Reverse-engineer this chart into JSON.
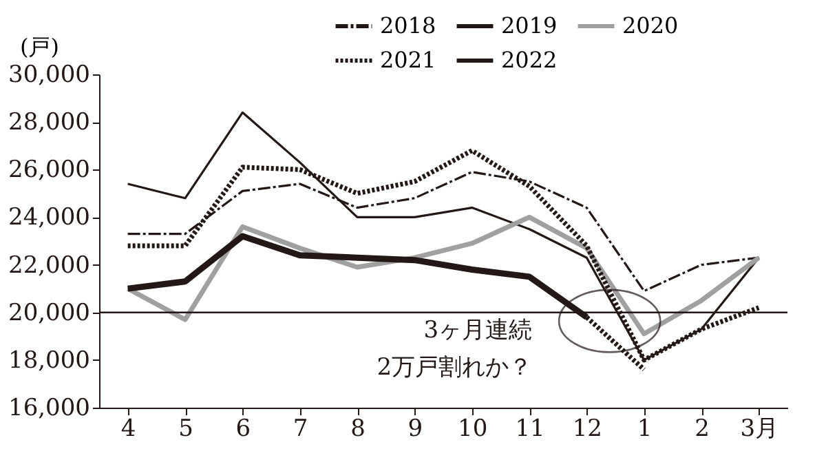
{
  "chart_data": {
    "type": "line",
    "ylabel": "(戸)",
    "categories": [
      "4",
      "5",
      "6",
      "7",
      "8",
      "9",
      "10",
      "11",
      "12",
      "1",
      "2",
      "3月"
    ],
    "ylim": [
      16000,
      30000
    ],
    "yticks": [
      {
        "value": 16000,
        "label": "16,000"
      },
      {
        "value": 18000,
        "label": "18,000"
      },
      {
        "value": 20000,
        "label": "20,000"
      },
      {
        "value": 22000,
        "label": "22,000"
      },
      {
        "value": 24000,
        "label": "24,000"
      },
      {
        "value": 26000,
        "label": "26,000"
      },
      {
        "value": 28000,
        "label": "28,000"
      },
      {
        "value": 30000,
        "label": "30,000"
      }
    ],
    "grid": false,
    "legend": "top right",
    "series": [
      {
        "name": "2018",
        "color": "#231815",
        "line_style": "dashed",
        "values": [
          23300,
          23300,
          25100,
          25400,
          24400,
          24800,
          25900,
          25500,
          24400,
          20900,
          22000,
          22300
        ]
      },
      {
        "name": "2019",
        "color": "#231815",
        "line_style": "solid",
        "values": [
          25400,
          24800,
          28400,
          26300,
          24000,
          24000,
          24400,
          23500,
          22300,
          18000,
          19300,
          22300
        ]
      },
      {
        "name": "2020",
        "color": "#a0a0a0",
        "line_style": "solid",
        "values": [
          21000,
          19700,
          23600,
          22700,
          21900,
          22300,
          22900,
          24000,
          22700,
          19100,
          20500,
          22300
        ]
      },
      {
        "name": "2021",
        "color": "#231815",
        "line_style": "dotted",
        "values": [
          22800,
          22800,
          26100,
          26000,
          25000,
          25500,
          26800,
          25300,
          22800,
          18000,
          19300,
          20200
        ]
      },
      {
        "name": "2022",
        "color": "#231815",
        "line_style": "solid",
        "values": [
          21000,
          21300,
          23200,
          22400,
          22300,
          22200,
          21800,
          21500,
          19800,
          null,
          null,
          null
        ]
      },
      {
        "color": "#231815",
        "line_style": "dotted",
        "values": [
          null,
          null,
          null,
          null,
          null,
          null,
          null,
          null,
          19800,
          17600,
          null,
          null
        ]
      }
    ],
    "ref_lines": [
      {
        "axis": "y",
        "value": 20000,
        "color": "#231815"
      }
    ],
    "annotations": [
      "3ヶ月連続\n2万戸割れか？"
    ]
  }
}
